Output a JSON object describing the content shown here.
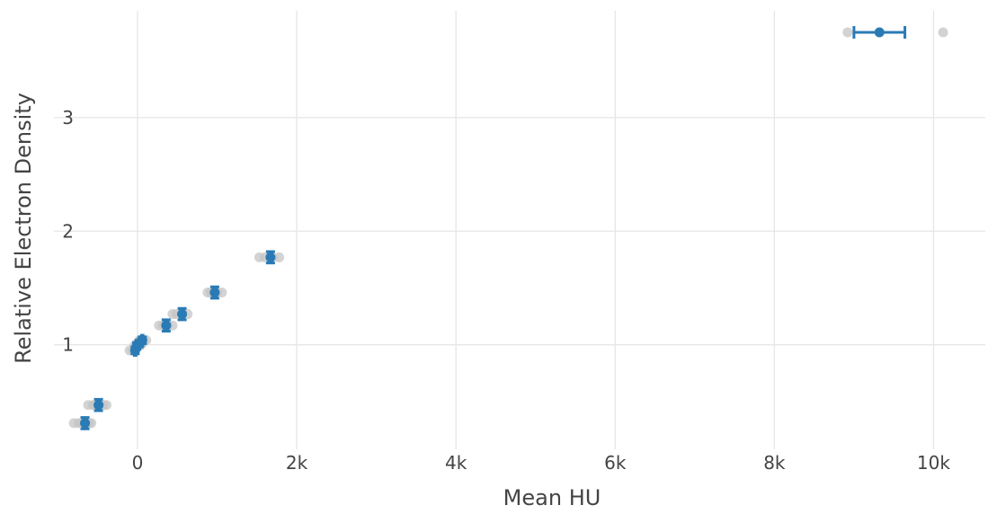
{
  "chart_data": {
    "type": "scatter",
    "xlabel": "Mean HU",
    "ylabel": "Relative Electron Density",
    "xlim": [
      -1050,
      10650
    ],
    "ylim": [
      0.08,
      3.94
    ],
    "x_ticks": [
      {
        "value": 0,
        "label": "0"
      },
      {
        "value": 2000,
        "label": "2k"
      },
      {
        "value": 4000,
        "label": "4k"
      },
      {
        "value": 6000,
        "label": "6k"
      },
      {
        "value": 8000,
        "label": "8k"
      },
      {
        "value": 10000,
        "label": "10k"
      }
    ],
    "y_ticks": [
      {
        "value": 1,
        "label": "1"
      },
      {
        "value": 2,
        "label": "2"
      },
      {
        "value": 3,
        "label": "3"
      }
    ],
    "grid": true,
    "colors": {
      "mean": "#2a7ab5",
      "samples": "#c4c4c4",
      "dense": "#7f7f7f"
    },
    "series": [
      {
        "values": [
          {
            "x": -660,
            "y": 0.31,
            "xerr": 20,
            "yerr": 0.05,
            "samples": [
              -800,
              -740,
              -700,
              -640,
              -610,
              -580
            ]
          },
          {
            "x": -490,
            "y": 0.47,
            "xerr": 20,
            "yerr": 0.05,
            "samples": [
              -620,
              -560,
              -530,
              -470,
              -430,
              -390
            ]
          },
          {
            "x": -30,
            "y": 0.95,
            "xerr": 10,
            "yerr": 0.03,
            "samples": [
              -100,
              -60,
              -30
            ]
          },
          {
            "x": -10,
            "y": 0.99,
            "xerr": 10,
            "yerr": 0.03,
            "samples": [
              -40,
              0,
              30
            ]
          },
          {
            "x": 20,
            "y": 1.01,
            "xerr": 10,
            "yerr": 0.03,
            "samples": [
              -10,
              30,
              60
            ]
          },
          {
            "x": 60,
            "y": 1.04,
            "xerr": 10,
            "yerr": 0.03,
            "samples": [
              20,
              70,
              110
            ]
          },
          {
            "x": 360,
            "y": 1.17,
            "xerr": 20,
            "yerr": 0.05,
            "samples": [
              270,
              320,
              380,
              440
            ]
          },
          {
            "x": 560,
            "y": 1.27,
            "xerr": 20,
            "yerr": 0.05,
            "samples": [
              440,
              490,
              560,
              630
            ]
          },
          {
            "x": 970,
            "y": 1.46,
            "xerr": 20,
            "yerr": 0.05,
            "samples": [
              880,
              920,
              1000,
              1060
            ]
          },
          {
            "x": 1670,
            "y": 1.77,
            "xerr": 20,
            "yerr": 0.05,
            "samples": [
              1530,
              1600,
              1700,
              1780
            ]
          },
          {
            "x": 9320,
            "y": 3.75,
            "xerr": 320,
            "yerr": 0.0,
            "samples": [
              8920,
              10120
            ]
          }
        ]
      }
    ]
  }
}
